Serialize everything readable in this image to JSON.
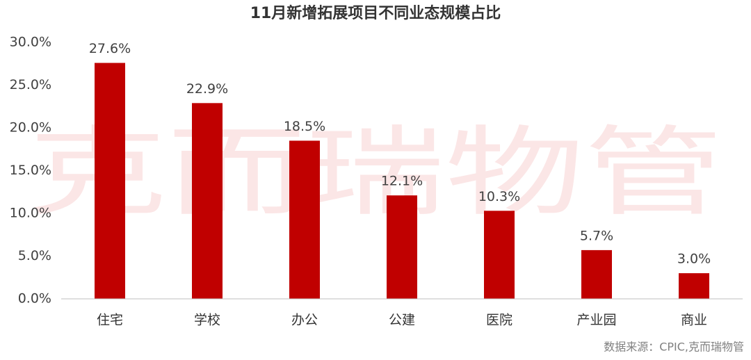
{
  "chart_data": {
    "type": "bar",
    "title": "11月新增拓展项目不同业态规模占比",
    "categories": [
      "住宅",
      "学校",
      "办公",
      "公建",
      "医院",
      "产业园",
      "商业"
    ],
    "values": [
      27.6,
      22.9,
      18.5,
      12.1,
      10.3,
      5.7,
      3.0
    ],
    "value_labels": [
      "27.6%",
      "22.9%",
      "18.5%",
      "12.1%",
      "10.3%",
      "5.7%",
      "3.0%"
    ],
    "color": "#c00000",
    "ylim": [
      0,
      30
    ],
    "yticks": [
      {
        "value": 0,
        "label": "0.0%"
      },
      {
        "value": 5,
        "label": "5.0%"
      },
      {
        "value": 10,
        "label": "10.0%"
      },
      {
        "value": 15,
        "label": "15.0%"
      },
      {
        "value": 20,
        "label": "20.0%"
      },
      {
        "value": 25,
        "label": "25.0%"
      },
      {
        "value": 30,
        "label": "30.0%"
      }
    ],
    "grid": false,
    "watermark": "克而瑞物管",
    "source": "数据来源：CPIC,克而瑞物管"
  }
}
